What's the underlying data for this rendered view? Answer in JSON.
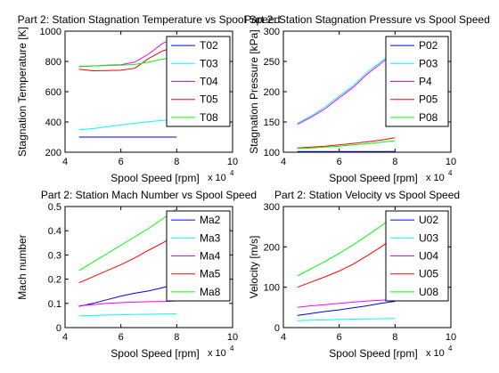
{
  "chart_data": [
    {
      "type": "line",
      "title": "Part 2: Station Stagnation Temperature vs Spool Speed",
      "xlabel": "Spool Speed [rpm]",
      "ylabel": "Stagnation Temperature [K]",
      "x_exponent_label": "x 10",
      "x_exponent_power": "4",
      "xlim": [
        4,
        10
      ],
      "ylim": [
        200,
        1000
      ],
      "xticks": [
        "4",
        "6",
        "8",
        "10"
      ],
      "yticks": [
        "200",
        "400",
        "600",
        "800",
        "1000"
      ],
      "legend_position": "top-right",
      "x": [
        4.5,
        5.0,
        5.5,
        6.0,
        6.5,
        7.0,
        7.5,
        8.0
      ],
      "series": [
        {
          "name": "T02",
          "color": "#0000ff",
          "values": [
            300,
            300,
            300,
            300,
            300,
            300,
            300,
            300
          ]
        },
        {
          "name": "T03",
          "color": "#00ffff",
          "values": [
            348,
            356,
            368,
            380,
            392,
            402,
            410,
            415
          ]
        },
        {
          "name": "T04",
          "color": "#ff00ff",
          "values": [
            765,
            770,
            775,
            778,
            795,
            850,
            920,
            960
          ]
        },
        {
          "name": "T05",
          "color": "#ff0000",
          "values": [
            748,
            738,
            740,
            742,
            755,
            820,
            870,
            900
          ]
        },
        {
          "name": "T08",
          "color": "#00ff00",
          "values": [
            768,
            770,
            773,
            775,
            780,
            795,
            815,
            830
          ]
        }
      ]
    },
    {
      "type": "line",
      "title": "Part 2: Station Stagnation Pressure vs Spool Speed",
      "xlabel": "Spool Speed [rpm]",
      "ylabel": "Stagnation Pressure [kPa]",
      "x_exponent_label": "x 10",
      "x_exponent_power": "4",
      "xlim": [
        4,
        10
      ],
      "ylim": [
        100,
        300
      ],
      "xticks": [
        "4",
        "6",
        "8",
        "10"
      ],
      "yticks": [
        "100",
        "150",
        "200",
        "250",
        "300"
      ],
      "legend_position": "top-right",
      "x": [
        4.5,
        5.0,
        5.5,
        6.0,
        6.5,
        7.0,
        7.5,
        8.0
      ],
      "series": [
        {
          "name": "P02",
          "color": "#0000ff",
          "values": [
            101,
            101,
            101,
            101,
            101,
            101,
            101,
            101
          ]
        },
        {
          "name": "P03",
          "color": "#00ffff",
          "values": [
            148,
            160,
            175,
            193,
            210,
            232,
            250,
            268
          ]
        },
        {
          "name": "P4",
          "color": "#ff00ff",
          "values": [
            146,
            158,
            172,
            190,
            207,
            229,
            247,
            265
          ]
        },
        {
          "name": "P05",
          "color": "#ff0000",
          "values": [
            107,
            108.5,
            110,
            112,
            114.5,
            117,
            120,
            124
          ]
        },
        {
          "name": "P08",
          "color": "#00ff00",
          "values": [
            106,
            107,
            108.5,
            110,
            112,
            114,
            116.5,
            119
          ]
        }
      ]
    },
    {
      "type": "line",
      "title": "Part 2: Station Mach Number vs Spool Speed",
      "xlabel": "Spool Speed [rpm]",
      "ylabel": "Mach number",
      "x_exponent_label": "x 10",
      "x_exponent_power": "4",
      "xlim": [
        4,
        10
      ],
      "ylim": [
        0,
        0.5
      ],
      "xticks": [
        "4",
        "6",
        "8",
        "10"
      ],
      "yticks": [
        "0",
        "0.1",
        "0.2",
        "0.3",
        "0.4",
        "0.5"
      ],
      "legend_position": "top-right",
      "x": [
        4.5,
        5.0,
        5.5,
        6.0,
        6.5,
        7.0,
        7.5,
        8.0
      ],
      "series": [
        {
          "name": "Ma2",
          "color": "#0000ff",
          "values": [
            0.088,
            0.1,
            0.115,
            0.13,
            0.142,
            0.152,
            0.165,
            0.18
          ]
        },
        {
          "name": "Ma3",
          "color": "#00ffff",
          "values": [
            0.048,
            0.05,
            0.052,
            0.053,
            0.054,
            0.055,
            0.056,
            0.057
          ]
        },
        {
          "name": "Ma4",
          "color": "#ff00ff",
          "values": [
            0.09,
            0.095,
            0.1,
            0.103,
            0.105,
            0.107,
            0.108,
            0.11
          ]
        },
        {
          "name": "Ma5",
          "color": "#ff0000",
          "values": [
            0.185,
            0.21,
            0.235,
            0.26,
            0.288,
            0.32,
            0.35,
            0.385
          ]
        },
        {
          "name": "Ma8",
          "color": "#00ff00",
          "values": [
            0.235,
            0.27,
            0.305,
            0.34,
            0.375,
            0.41,
            0.45,
            0.49
          ]
        }
      ]
    },
    {
      "type": "line",
      "title": "Part 2: Station Velocity vs Spool Speed",
      "xlabel": "Spool Speed [rpm]",
      "ylabel": "Velocity [m/s]",
      "x_exponent_label": "x 10",
      "x_exponent_power": "4",
      "xlim": [
        4,
        10
      ],
      "ylim": [
        0,
        300
      ],
      "xticks": [
        "4",
        "6",
        "8",
        "10"
      ],
      "yticks": [
        "0",
        "100",
        "200",
        "300"
      ],
      "legend_position": "top-right",
      "x": [
        4.5,
        5.0,
        5.5,
        6.0,
        6.5,
        7.0,
        7.5,
        8.0
      ],
      "series": [
        {
          "name": "U02",
          "color": "#0000ff",
          "values": [
            30,
            35,
            40,
            44,
            49,
            54,
            60,
            65
          ]
        },
        {
          "name": "U03",
          "color": "#00ffff",
          "values": [
            17,
            18,
            19,
            20,
            21,
            21.5,
            22,
            22.5
          ]
        },
        {
          "name": "U04",
          "color": "#ff00ff",
          "values": [
            50,
            54,
            57,
            60,
            63,
            66,
            68,
            70
          ]
        },
        {
          "name": "U05",
          "color": "#ff0000",
          "values": [
            100,
            113,
            126,
            140,
            157,
            178,
            200,
            225
          ]
        },
        {
          "name": "U08",
          "color": "#00ff00",
          "values": [
            128,
            146,
            164,
            184,
            205,
            228,
            252,
            278
          ]
        }
      ]
    }
  ]
}
